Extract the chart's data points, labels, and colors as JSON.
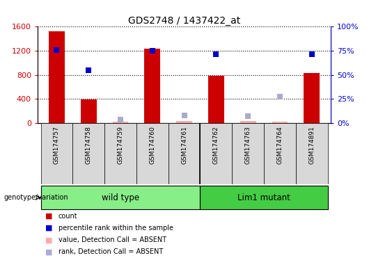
{
  "title": "GDS2748 / 1437422_at",
  "samples": [
    "GSM174757",
    "GSM174758",
    "GSM174759",
    "GSM174760",
    "GSM174761",
    "GSM174762",
    "GSM174763",
    "GSM174764",
    "GSM174891"
  ],
  "count_values": [
    1520,
    390,
    20,
    1230,
    30,
    780,
    30,
    20,
    830
  ],
  "percentile_values": [
    76,
    55,
    null,
    75,
    null,
    71,
    null,
    null,
    71
  ],
  "absent_value_values": [
    null,
    null,
    null,
    null,
    null,
    null,
    null,
    4,
    null
  ],
  "absent_rank_values": [
    null,
    null,
    3,
    null,
    8,
    null,
    7,
    27,
    null
  ],
  "count_absent": [
    false,
    false,
    true,
    false,
    true,
    false,
    true,
    true,
    false
  ],
  "wild_type_indices": [
    0,
    1,
    2,
    3,
    4
  ],
  "lim1_mutant_indices": [
    5,
    6,
    7,
    8
  ],
  "ylim_left": [
    0,
    1600
  ],
  "ylim_right": [
    0,
    100
  ],
  "yticks_left": [
    0,
    400,
    800,
    1200,
    1600
  ],
  "yticks_right": [
    0,
    25,
    50,
    75,
    100
  ],
  "ytick_labels_left": [
    "0",
    "400",
    "800",
    "1200",
    "1600"
  ],
  "ytick_labels_right": [
    "0%",
    "25%",
    "50%",
    "75%",
    "100%"
  ],
  "bar_color": "#cc0000",
  "bar_absent_color": "#ffaaaa",
  "dot_color": "#0000cc",
  "dot_absent_color": "#aaaacc",
  "pink_absent_color": "#ffbbbb",
  "wild_type_color": "#88ee88",
  "lim1_mutant_color": "#44cc44",
  "legend_items": [
    {
      "label": "count",
      "color": "#cc0000"
    },
    {
      "label": "percentile rank within the sample",
      "color": "#0000cc"
    },
    {
      "label": "value, Detection Call = ABSENT",
      "color": "#ffaaaa"
    },
    {
      "label": "rank, Detection Call = ABSENT",
      "color": "#aaaadd"
    }
  ]
}
